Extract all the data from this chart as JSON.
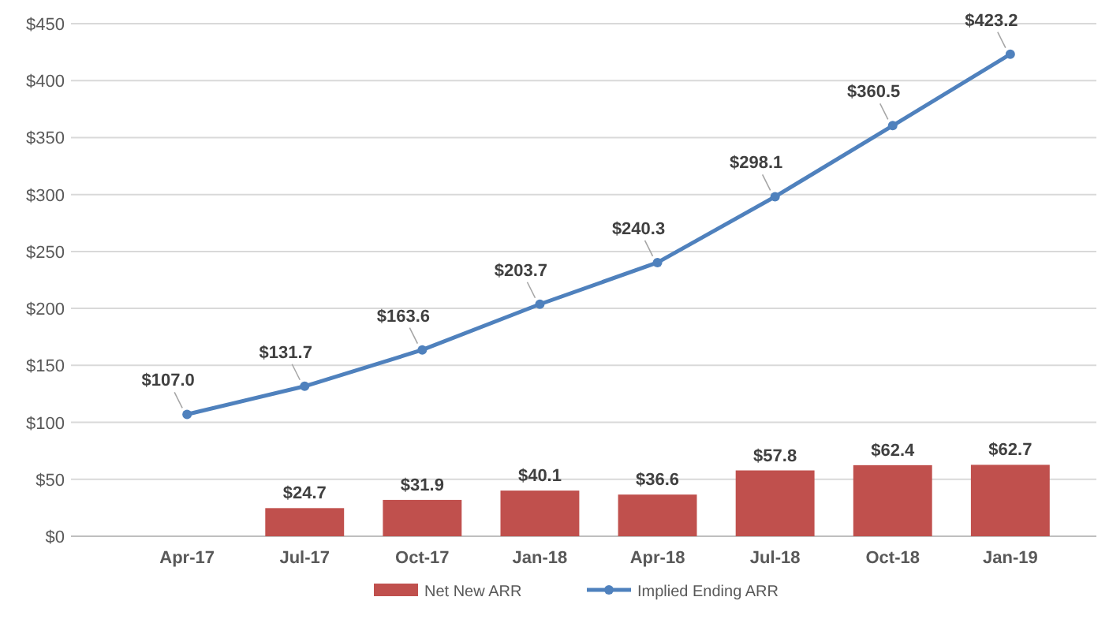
{
  "chart_data": {
    "type": "bar",
    "categories": [
      "Apr-17",
      "Jul-17",
      "Oct-17",
      "Jan-18",
      "Apr-18",
      "Jul-18",
      "Oct-18",
      "Jan-19"
    ],
    "series": [
      {
        "name": "Net New ARR",
        "color": "#c0504d",
        "values": [
          null,
          24.7,
          31.9,
          40.1,
          36.6,
          57.8,
          62.4,
          62.7
        ],
        "value_labels": [
          null,
          "$24.7",
          "$31.9",
          "$40.1",
          "$36.6",
          "$57.8",
          "$62.4",
          "$62.7"
        ]
      },
      {
        "name": "Implied Ending ARR",
        "type": "line",
        "color": "#4f81bd",
        "marker": "circle",
        "values": [
          107.0,
          131.7,
          163.6,
          203.7,
          240.3,
          298.1,
          360.5,
          423.2
        ],
        "value_labels": [
          "$107.0",
          "$131.7",
          "$163.6",
          "$203.7",
          "$240.3",
          "$298.1",
          "$360.5",
          "$423.2"
        ]
      }
    ],
    "ylim": [
      0,
      450
    ],
    "yticks": [
      {
        "value": 0,
        "label": "$0"
      },
      {
        "value": 50,
        "label": "$50"
      },
      {
        "value": 100,
        "label": "$100"
      },
      {
        "value": 150,
        "label": "$150"
      },
      {
        "value": 200,
        "label": "$200"
      },
      {
        "value": 250,
        "label": "$250"
      },
      {
        "value": 300,
        "label": "$300"
      },
      {
        "value": 350,
        "label": "$350"
      },
      {
        "value": 400,
        "label": "$400"
      },
      {
        "value": 450,
        "label": "$450"
      }
    ],
    "grid": "y",
    "legend": "bottom"
  }
}
